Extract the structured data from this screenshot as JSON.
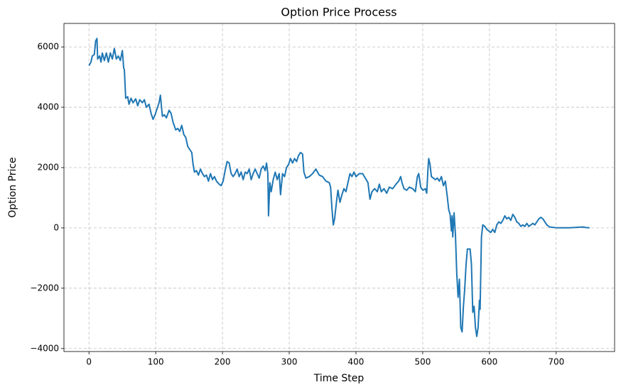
{
  "chart_data": {
    "type": "line",
    "title": "Option Price Process",
    "x_label": "Time Step",
    "y_label": "Option Price",
    "color": "#1f77b4",
    "grid": true,
    "x": [
      0,
      3,
      5,
      8,
      10,
      12,
      13,
      16,
      18,
      20,
      23,
      26,
      29,
      32,
      35,
      38,
      41,
      44,
      47,
      50,
      52,
      53,
      55,
      58,
      60,
      63,
      66,
      70,
      73,
      76,
      80,
      83,
      86,
      90,
      93,
      96,
      99,
      102,
      105,
      107,
      110,
      113,
      116,
      120,
      123,
      126,
      130,
      133,
      136,
      139,
      142,
      145,
      148,
      151,
      154,
      156,
      158,
      161,
      164,
      167,
      170,
      173,
      176,
      179,
      182,
      185,
      188,
      191,
      195,
      198,
      201,
      204,
      207,
      210,
      213,
      216,
      219,
      222,
      225,
      228,
      231,
      234,
      237,
      240,
      243,
      246,
      249,
      252,
      255,
      258,
      261,
      264,
      266,
      268,
      269,
      271,
      273,
      276,
      279,
      282,
      285,
      287,
      290,
      293,
      296,
      299,
      302,
      305,
      308,
      311,
      314,
      317,
      320,
      322,
      325,
      330,
      335,
      340,
      345,
      350,
      355,
      360,
      362,
      364,
      366,
      368,
      371,
      373,
      376,
      379,
      382,
      385,
      388,
      391,
      394,
      397,
      400,
      405,
      410,
      414,
      418,
      421,
      424,
      428,
      432,
      435,
      438,
      442,
      446,
      450,
      455,
      460,
      464,
      467,
      469,
      472,
      476,
      480,
      485,
      489,
      492,
      494,
      497,
      500,
      504,
      506,
      508,
      509,
      511,
      513,
      516,
      519,
      522,
      525,
      528,
      531,
      534,
      537,
      539,
      541,
      543,
      544,
      545,
      547,
      549,
      551,
      553,
      555,
      557,
      559,
      561,
      563,
      565,
      567,
      569,
      571,
      573,
      575,
      577,
      579,
      581,
      583,
      585,
      586,
      588,
      590,
      593,
      596,
      599,
      602,
      605,
      608,
      611,
      614,
      617,
      620,
      623,
      626,
      629,
      632,
      635,
      638,
      641,
      644,
      647,
      650,
      653,
      656,
      659,
      662,
      665,
      668,
      671,
      674,
      677,
      680,
      683,
      686,
      690,
      700,
      720,
      740,
      745,
      750
    ],
    "values": [
      5380,
      5500,
      5700,
      5750,
      6200,
      6280,
      5600,
      5700,
      5500,
      5800,
      5550,
      5800,
      5500,
      5800,
      5600,
      5950,
      5600,
      5700,
      5550,
      5880,
      5300,
      5250,
      4300,
      4350,
      4100,
      4300,
      4150,
      4280,
      4050,
      4250,
      4150,
      4250,
      4000,
      4100,
      3800,
      3600,
      3750,
      3950,
      4150,
      4400,
      3700,
      3750,
      3650,
      3900,
      3800,
      3500,
      3250,
      3300,
      3200,
      3400,
      3100,
      3000,
      2700,
      2600,
      2500,
      2100,
      1850,
      1900,
      1750,
      1950,
      1800,
      1700,
      1750,
      1550,
      1800,
      1600,
      1700,
      1550,
      1450,
      1400,
      1550,
      1900,
      2200,
      2150,
      1800,
      1700,
      1800,
      1950,
      1700,
      1850,
      1600,
      1850,
      1800,
      1950,
      1600,
      1800,
      1950,
      1800,
      1650,
      1950,
      2050,
      1900,
      2150,
      1800,
      400,
      1500,
      1200,
      1600,
      1850,
      1600,
      1800,
      1100,
      1800,
      1700,
      2000,
      2100,
      2300,
      2150,
      2300,
      2200,
      2400,
      2500,
      2450,
      1850,
      1650,
      1700,
      1800,
      1950,
      1750,
      1700,
      1550,
      1500,
      1350,
      650,
      100,
      300,
      900,
      1250,
      850,
      1100,
      1300,
      1200,
      1500,
      1800,
      1700,
      1850,
      1700,
      1800,
      1800,
      1650,
      1500,
      950,
      1200,
      1300,
      1200,
      1450,
      1200,
      1300,
      1150,
      1350,
      1300,
      1450,
      1550,
      1700,
      1500,
      1300,
      1250,
      1350,
      1300,
      1200,
      1700,
      1800,
      1350,
      1250,
      1300,
      1150,
      2000,
      2300,
      2100,
      1700,
      1650,
      1600,
      1650,
      1550,
      1700,
      1400,
      1550,
      1000,
      600,
      450,
      -100,
      400,
      -300,
      500,
      -200,
      -1500,
      -2300,
      -1700,
      -3300,
      -3450,
      -2600,
      -2000,
      -1200,
      -700,
      -700,
      -700,
      -1200,
      -2800,
      -2600,
      -3300,
      -3600,
      -3300,
      -2400,
      -2700,
      -300,
      100,
      50,
      -50,
      -100,
      -150,
      -50,
      -150,
      100,
      200,
      150,
      250,
      400,
      300,
      350,
      250,
      450,
      350,
      200,
      150,
      50,
      100,
      50,
      150,
      50,
      100,
      150,
      100,
      200,
      300,
      350,
      300,
      200,
      100,
      30,
      5,
      5,
      30,
      10,
      5
    ],
    "xlim": [
      -37.5,
      787.5
    ],
    "xticks": [
      0,
      100,
      200,
      300,
      400,
      500,
      600,
      700
    ],
    "ylim": [
      -4100,
      6780
    ],
    "yticks": [
      {
        "value": -4000,
        "label": "−4000"
      },
      {
        "value": -2000,
        "label": "−2000"
      },
      0,
      2000,
      4000,
      6000
    ]
  }
}
